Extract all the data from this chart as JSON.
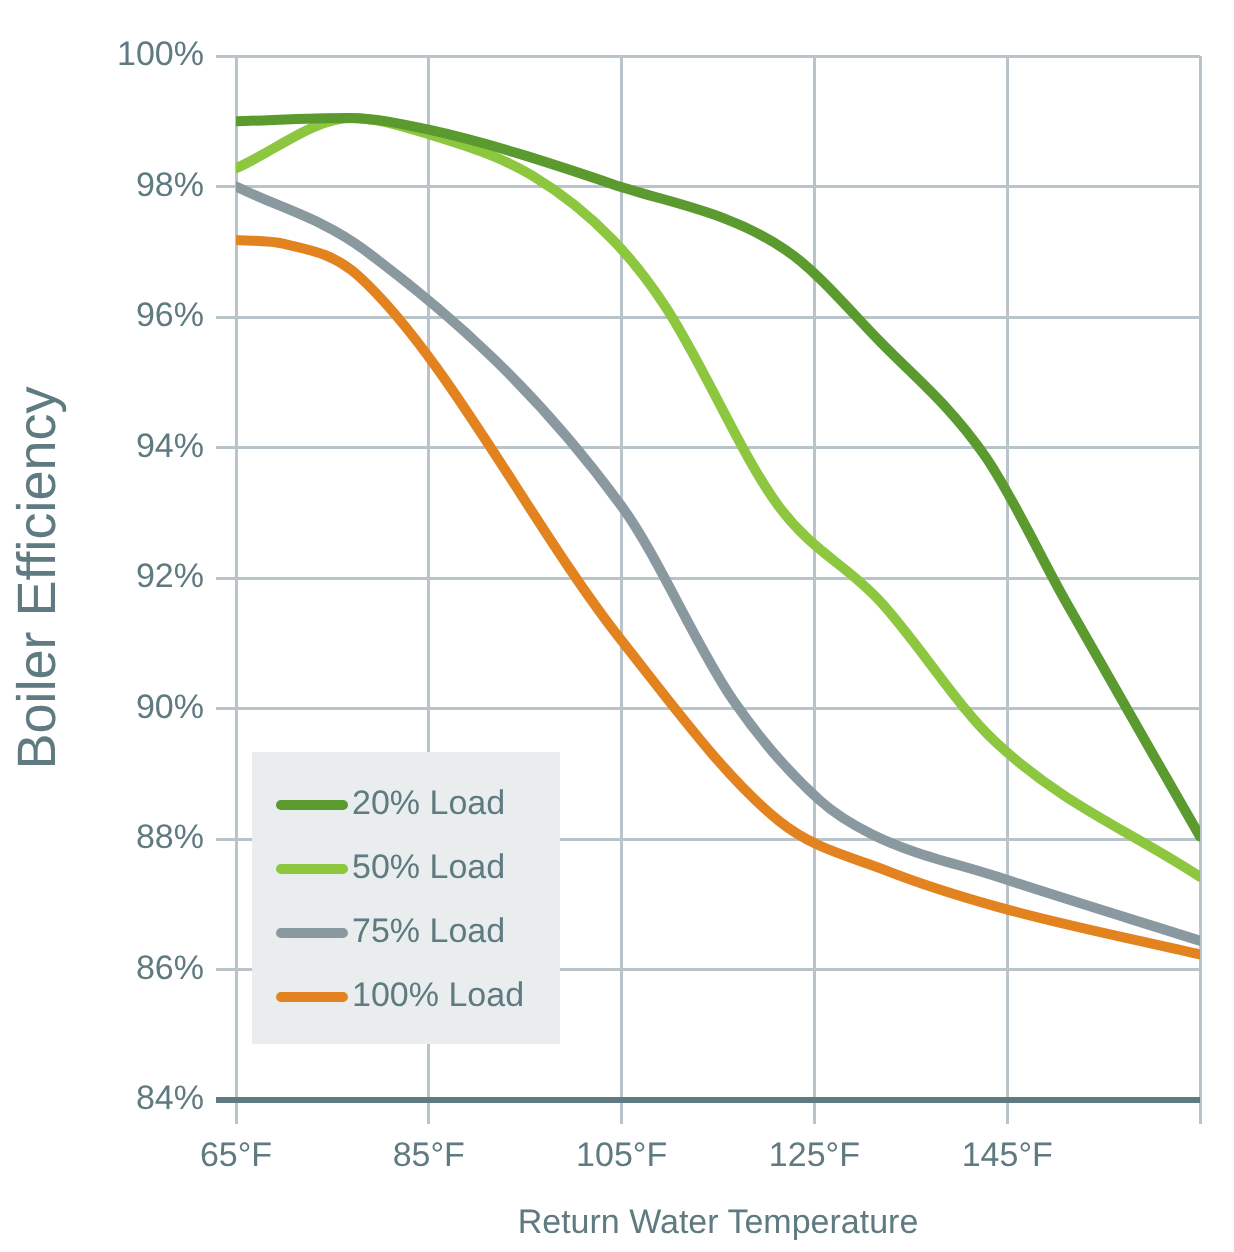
{
  "chart_data": {
    "type": "line",
    "xlabel": "Return Water Temperature",
    "ylabel": "Boiler Efficiency",
    "xlim": [
      65,
      165
    ],
    "xticks": [
      {
        "value": 65,
        "label": "65°F"
      },
      {
        "value": 85,
        "label": "85°F"
      },
      {
        "value": 105,
        "label": "105°F"
      },
      {
        "value": 125,
        "label": "125°F"
      },
      {
        "value": 145,
        "label": "145°F"
      },
      {
        "value": 165,
        "label": null
      }
    ],
    "ylim": [
      84,
      100
    ],
    "yticks": [
      {
        "value": 84,
        "label": "84%"
      },
      {
        "value": 86,
        "label": "86%"
      },
      {
        "value": 88,
        "label": "88%"
      },
      {
        "value": 90,
        "label": "90%"
      },
      {
        "value": 92,
        "label": "92%"
      },
      {
        "value": 94,
        "label": "94%"
      },
      {
        "value": 96,
        "label": "96%"
      },
      {
        "value": 98,
        "label": "98%"
      },
      {
        "value": 100,
        "label": "100%"
      }
    ],
    "grid": true,
    "legend": "bottom left",
    "marker": "none",
    "line_style": "solid",
    "series": [
      {
        "name": "20% Load",
        "color": "#5a9a2e",
        "x": [
          65,
          76.6,
          85,
          104,
          122,
          131.7,
          142.7,
          151,
          165
        ],
        "values": [
          99.0,
          99.05,
          98.87,
          98.04,
          97.03,
          95.64,
          93.87,
          91.66,
          88.04
        ]
      },
      {
        "name": "50% Load",
        "color": "#8dc63f",
        "x": [
          65,
          77,
          85,
          95.8,
          104.1,
          109.5,
          121.3,
          131.7,
          143.7,
          165
        ],
        "values": [
          98.28,
          99.05,
          98.8,
          98.16,
          97.18,
          96.17,
          93.1,
          91.66,
          89.5,
          87.42
        ]
      },
      {
        "name": "75% Load",
        "color": "#8a99a0",
        "x": [
          65,
          78.3,
          105,
          116.6,
          125.5,
          131,
          144,
          165
        ],
        "values": [
          98.0,
          97.03,
          93.1,
          90.12,
          88.6,
          88.07,
          87.42,
          86.44
        ]
      },
      {
        "name": "100% Load",
        "color": "#e3831f",
        "x": [
          65,
          70,
          77.7,
          105,
          121.3,
          132.4,
          144,
          165
        ],
        "values": [
          97.18,
          97.12,
          96.63,
          91.04,
          88.28,
          87.52,
          86.96,
          86.23
        ]
      }
    ]
  }
}
